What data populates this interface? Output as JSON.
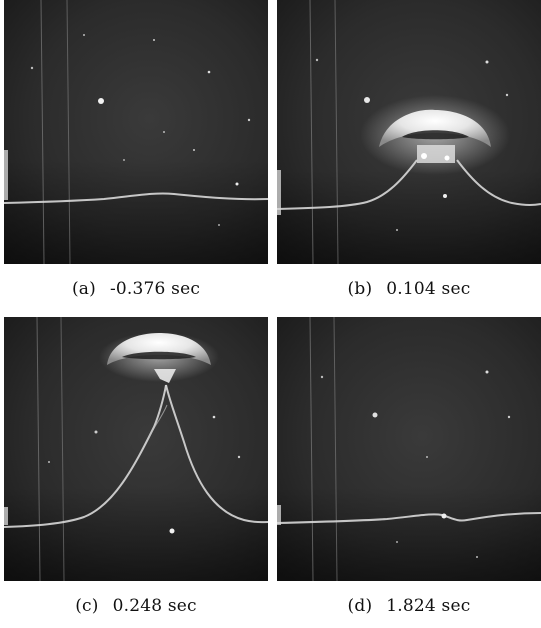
{
  "figure": {
    "panels": [
      {
        "id": "a",
        "label": "(a)",
        "time": "-0.376 sec"
      },
      {
        "id": "b",
        "label": "(b)",
        "time": "0.104 sec"
      },
      {
        "id": "c",
        "label": "(c)",
        "time": "0.248 sec"
      },
      {
        "id": "d",
        "label": "(d)",
        "time": "1.824 sec"
      }
    ]
  }
}
